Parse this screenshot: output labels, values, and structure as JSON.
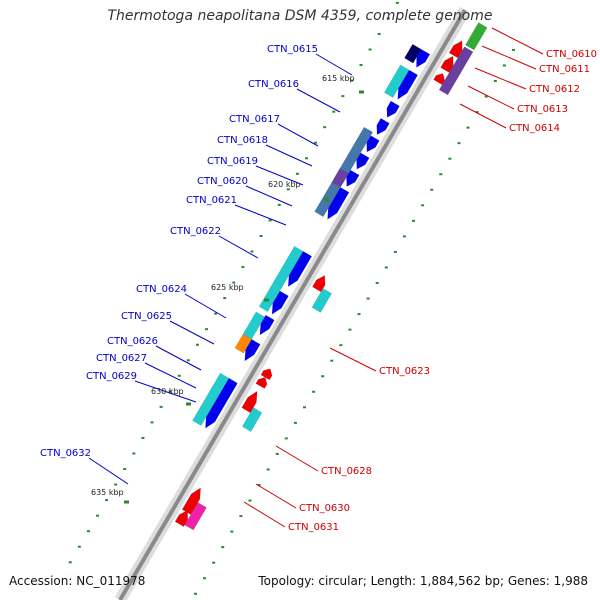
{
  "header": {
    "title": "Thermotoga neapolitana DSM 4359, complete genome"
  },
  "footer": {
    "accession": "Accession: NC_011978",
    "topology": "Topology: circular; Length: 1,884,562 bp; Genes: 1,988"
  },
  "scale_markers": [
    "615 kbp",
    "620 kbp",
    "625 kbp",
    "630 kbp",
    "635 kbp"
  ],
  "genes": {
    "forward": [
      "CTN_0615",
      "CTN_0616",
      "CTN_0617",
      "CTN_0618",
      "CTN_0619",
      "CTN_0620",
      "CTN_0621",
      "CTN_0622",
      "CTN_0624",
      "CTN_0625",
      "CTN_0626",
      "CTN_0627",
      "CTN_0629",
      "CTN_0632"
    ],
    "reverse": [
      "CTN_0610",
      "CTN_0611",
      "CTN_0612",
      "CTN_0613",
      "CTN_0614",
      "CTN_0623",
      "CTN_0628",
      "CTN_0630",
      "CTN_0631"
    ]
  },
  "colors": {
    "backbone": "#8a8a8a",
    "forward_label": "#0000cc",
    "reverse_label": "#cc0000",
    "cds_blue": "#0000ee",
    "cds_red": "#ee0000",
    "cog_cyan": "#22cccc",
    "cog_steel": "#4477aa",
    "cog_purple": "#6a3fa0",
    "cog_orange": "#ff8800",
    "cog_green": "#33aa33",
    "cog_magenta": "#ee22aa",
    "tick_green": "#2a8a2a"
  }
}
